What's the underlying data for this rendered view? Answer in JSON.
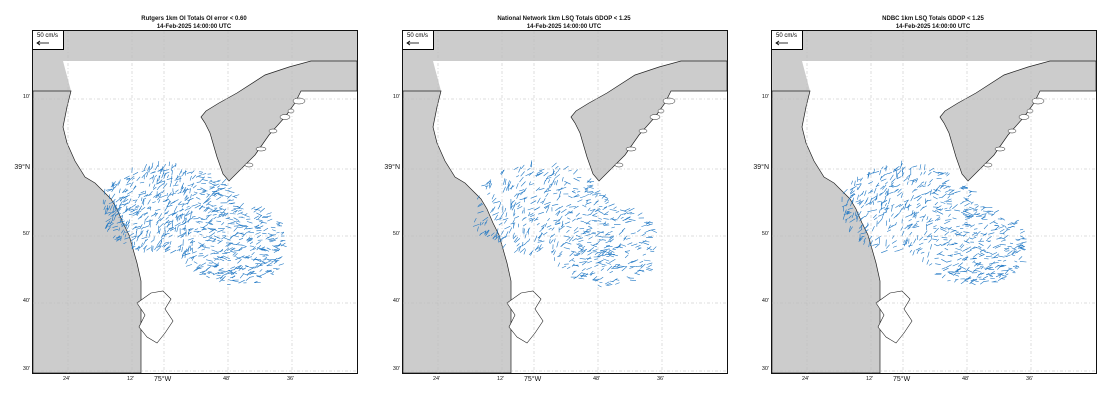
{
  "maps": [
    {
      "title": "Rutgers 1km OI Totals OI error < 0.60",
      "subtitle": "14-Feb-2025 14:00:00 UTC",
      "seed": 11,
      "density": 1.0
    },
    {
      "title": "National Network 1km LSQ Totals GDOP < 1.25",
      "subtitle": "14-Feb-2025 14:00:00 UTC",
      "seed": 23,
      "density": 0.65
    },
    {
      "title": "NDBC 1km LSQ Totals GDOP < 1.25",
      "subtitle": "14-Feb-2025 14:00:00 UTC",
      "seed": 37,
      "density": 0.75
    }
  ],
  "scale_label": "50 cm/s",
  "lat_labels": [
    {
      "text": "10'",
      "major": false
    },
    {
      "text": "39°N",
      "major": true
    },
    {
      "text": "50'",
      "major": false
    },
    {
      "text": "40'",
      "major": false
    },
    {
      "text": "30'",
      "major": false
    }
  ],
  "lon_labels": [
    {
      "text": "24'",
      "major": false
    },
    {
      "text": "12'",
      "major": false
    },
    {
      "text": "75°W",
      "major": true
    },
    {
      "text": "48'",
      "major": false
    },
    {
      "text": "36'",
      "major": false
    }
  ],
  "colors": {
    "land": "#cccccc",
    "water": "#ffffff",
    "coastline": "#222222",
    "vector": "#1f77c4",
    "grid": "#bbbbbb"
  }
}
